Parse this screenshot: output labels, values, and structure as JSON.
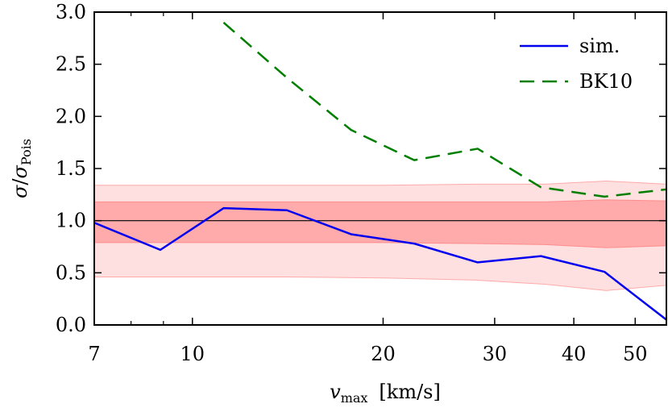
{
  "chart_data": {
    "type": "line",
    "xscale": "log",
    "xlim": [
      7,
      56
    ],
    "ylim": [
      0.0,
      3.0
    ],
    "xlabel": {
      "var": "v",
      "sub": "max",
      "unit": "[km/s]"
    },
    "ylabel": {
      "num": "σ",
      "den": "σ",
      "den_sub": "Pois"
    },
    "xticks": [
      {
        "value": 7,
        "label": "7"
      },
      {
        "value": 10,
        "label": "10"
      },
      {
        "value": 20,
        "label": "20"
      },
      {
        "value": 30,
        "label": "30"
      },
      {
        "value": 40,
        "label": "40"
      },
      {
        "value": 50,
        "label": "50"
      }
    ],
    "xminor": [
      8,
      9,
      60
    ],
    "yticks": [
      {
        "value": 0.0,
        "label": "0.0"
      },
      {
        "value": 0.5,
        "label": "0.5"
      },
      {
        "value": 1.0,
        "label": "1.0"
      },
      {
        "value": 1.5,
        "label": "1.5"
      },
      {
        "value": 2.0,
        "label": "2.0"
      },
      {
        "value": 2.5,
        "label": "2.5"
      },
      {
        "value": 3.0,
        "label": "3.0"
      }
    ],
    "reference_line": 1.0,
    "bands": [
      {
        "name": "outer",
        "color": "#ff9999",
        "opacity": 0.3,
        "x": [
          7,
          10,
          14,
          20,
          28,
          36,
          45,
          56
        ],
        "lower": [
          0.46,
          0.46,
          0.46,
          0.45,
          0.43,
          0.39,
          0.33,
          0.38
        ],
        "upper": [
          1.34,
          1.34,
          1.34,
          1.34,
          1.35,
          1.35,
          1.38,
          1.35
        ]
      },
      {
        "name": "inner",
        "color": "#ff8080",
        "opacity": 0.55,
        "x": [
          7,
          10,
          14,
          20,
          28,
          36,
          45,
          56
        ],
        "lower": [
          0.79,
          0.79,
          0.79,
          0.79,
          0.78,
          0.77,
          0.74,
          0.76
        ],
        "upper": [
          1.18,
          1.18,
          1.18,
          1.18,
          1.18,
          1.18,
          1.2,
          1.19
        ]
      }
    ],
    "series": [
      {
        "name": "sim.",
        "color": "#0000ee",
        "dash": "",
        "x": [
          7,
          8.9,
          11.2,
          14.1,
          17.8,
          22.4,
          28.2,
          35.5,
          44.7,
          56
        ],
        "y": [
          0.98,
          0.72,
          1.12,
          1.1,
          0.87,
          0.78,
          0.6,
          0.66,
          0.51,
          0.05
        ]
      },
      {
        "name": "BK10",
        "color": "#007f00",
        "dash": "18 10",
        "x": [
          11.2,
          14.1,
          17.8,
          22.4,
          28.2,
          35.5,
          44.7,
          56
        ],
        "y": [
          2.9,
          2.37,
          1.87,
          1.58,
          1.69,
          1.32,
          1.23,
          1.3
        ]
      }
    ],
    "legend": {
      "position": "top-right"
    }
  }
}
